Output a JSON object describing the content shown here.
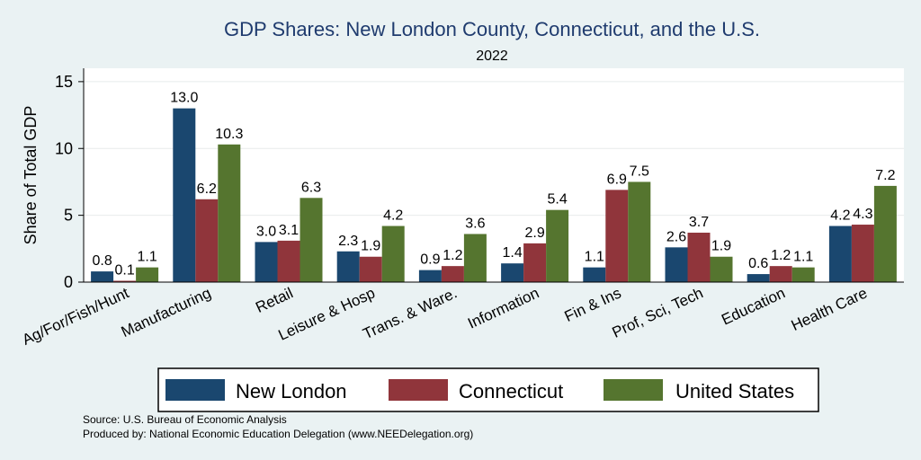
{
  "chart_data": {
    "type": "bar",
    "title": "GDP Shares: New London County, Connecticut, and the U.S.",
    "subtitle": "2022",
    "ylabel": "Share of Total GDP",
    "xlabel": "",
    "ylim": [
      0,
      16
    ],
    "yticks": [
      0,
      5,
      10,
      15
    ],
    "grid": true,
    "legend_position": "bottom",
    "categories": [
      "Ag/For/Fish/Hunt",
      "Manufacturing",
      "Retail",
      "Leisure & Hosp",
      "Trans. & Ware.",
      "Information",
      "Fin & Ins",
      "Prof, Sci, Tech",
      "Education",
      "Health Care"
    ],
    "series": [
      {
        "name": "New London",
        "color": "#1a476f",
        "values": [
          0.8,
          13.0,
          3.0,
          2.3,
          0.9,
          1.4,
          1.1,
          2.6,
          0.6,
          4.2
        ]
      },
      {
        "name": "Connecticut",
        "color": "#90353b",
        "values": [
          0.1,
          6.2,
          3.1,
          1.9,
          1.2,
          2.9,
          6.9,
          3.7,
          1.2,
          4.3
        ]
      },
      {
        "name": "United States",
        "color": "#55752f",
        "values": [
          1.1,
          10.3,
          6.3,
          4.2,
          3.6,
          5.4,
          7.5,
          1.9,
          1.1,
          7.2
        ]
      }
    ]
  },
  "footer": {
    "source": "Source: U.S. Bureau of Economic Analysis",
    "produced_by": "Produced by: National Economic Education Delegation (www.NEEDelegation.org)"
  }
}
